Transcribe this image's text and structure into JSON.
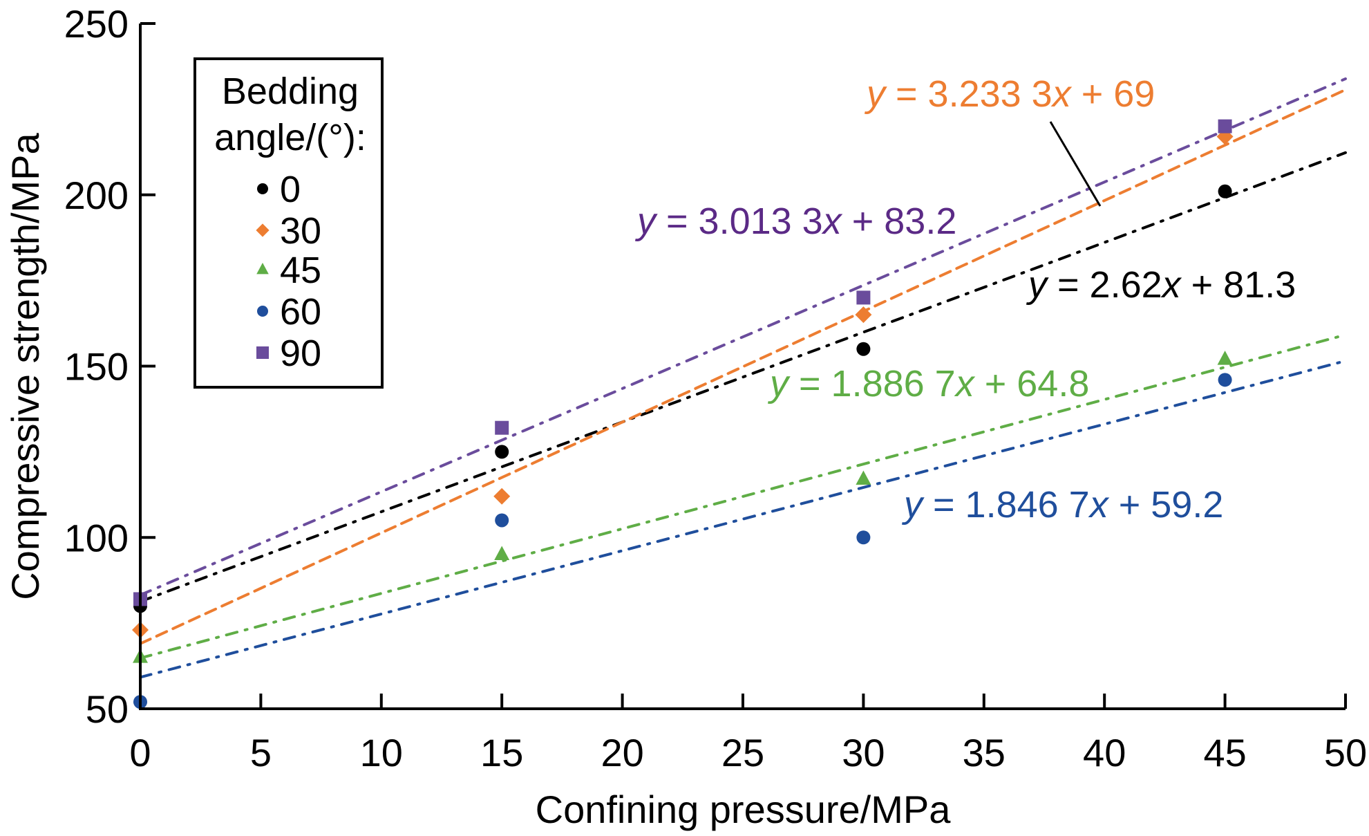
{
  "chart_data": {
    "type": "scatter",
    "title": "",
    "xlabel": "Confining pressure/MPa",
    "ylabel": "Compressive strength/MPa",
    "xlim": [
      0,
      50
    ],
    "ylim": [
      50,
      250
    ],
    "xticks": [
      0,
      5,
      10,
      15,
      20,
      25,
      30,
      35,
      40,
      45,
      50
    ],
    "yticks": [
      50,
      100,
      150,
      200,
      250
    ],
    "grid": false,
    "legend": {
      "title_line1": "Bedding",
      "title_line2": "angle/(°):",
      "placement": "top-left"
    },
    "series": [
      {
        "name": "0",
        "marker": "circle",
        "color": "#000000",
        "line_style": "dash-dot",
        "x": [
          0,
          15,
          30,
          45
        ],
        "y": [
          80,
          125,
          155,
          201
        ],
        "fit": {
          "slope": 2.62,
          "intercept": 81.3
        },
        "equation": {
          "pre": "y",
          "mid": " = 2.62",
          "x": "x",
          "post": " + 81.3"
        }
      },
      {
        "name": "30",
        "marker": "diamond",
        "color": "#ED7D31",
        "line_style": "dash",
        "x": [
          0,
          15,
          30,
          45
        ],
        "y": [
          73,
          112,
          165,
          217
        ],
        "fit": {
          "slope": 3.2333,
          "intercept": 69
        },
        "equation": {
          "pre": "y",
          "mid": " = 3.233 3",
          "x": "x",
          "post": " + 69"
        }
      },
      {
        "name": "45",
        "marker": "triangle",
        "color": "#5FAD46",
        "line_style": "dash-dot",
        "x": [
          0,
          15,
          30,
          45
        ],
        "y": [
          65,
          95,
          117,
          152
        ],
        "fit": {
          "slope": 1.8867,
          "intercept": 64.8
        },
        "equation": {
          "pre": "y",
          "mid": " = 1.886 7",
          "x": "x",
          "post": " + 64.8"
        }
      },
      {
        "name": "60",
        "marker": "circle",
        "color": "#1F4E9C",
        "line_style": "dash-dot",
        "x": [
          0,
          15,
          30,
          45
        ],
        "y": [
          52,
          105,
          100,
          146
        ],
        "fit": {
          "slope": 1.8467,
          "intercept": 59.2
        },
        "equation": {
          "pre": "y",
          "mid": " = 1.846 7",
          "x": "x",
          "post": " + 59.2"
        }
      },
      {
        "name": "90",
        "marker": "square",
        "color": "#6A4C9C",
        "line_style": "dash-dot",
        "x": [
          0,
          15,
          30,
          45
        ],
        "y": [
          82,
          132,
          170,
          220
        ],
        "fit": {
          "slope": 3.0133,
          "intercept": 83.2
        },
        "equation": {
          "pre": "y",
          "mid": " = 3.013 3",
          "x": "x",
          "post": " + 83.2"
        },
        "equation_color": "#5B2A86"
      }
    ],
    "annotations": [
      {
        "text": "leader line from orange equation to its fit line",
        "series": "30",
        "at_x": 40
      }
    ]
  }
}
